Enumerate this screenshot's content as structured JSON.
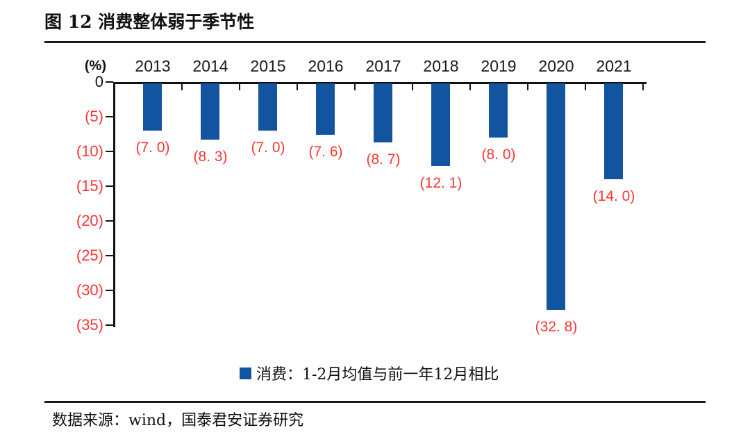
{
  "figure": {
    "title": "图 12 消费整体弱于季节性",
    "source": "数据来源：wind，国泰君安证券研究"
  },
  "chart_data": {
    "type": "bar",
    "title": "图 12 消费整体弱于季节性",
    "categories": [
      "2013",
      "2014",
      "2015",
      "2016",
      "2017",
      "2018",
      "2019",
      "2020",
      "2021"
    ],
    "values": [
      -7.0,
      -8.3,
      -7.0,
      -7.6,
      -8.7,
      -12.1,
      -8.0,
      -32.8,
      -14.0
    ],
    "value_labels": [
      "(7. 0)",
      "(8. 3)",
      "(7. 0)",
      "(7. 6)",
      "(8. 7)",
      "(12. 1)",
      "(8. 0)",
      "(32. 8)",
      "(14. 0)"
    ],
    "unit_label": "(%)",
    "y_tick_labels": [
      "0",
      "(5)",
      "(10)",
      "(15)",
      "(20)",
      "(25)",
      "(30)",
      "(35)"
    ],
    "y_tick_values": [
      0,
      -5,
      -10,
      -15,
      -20,
      -25,
      -30,
      -35
    ],
    "ylim": [
      -35,
      0
    ],
    "grid": false,
    "legend_position": "bottom-center",
    "legend": "消费：1-2月均值与前一年12月相比",
    "colors": {
      "bar": "#1254a0",
      "value_label": "#fa3434",
      "negative_tick_label": "#fa3434",
      "axis": "#111111"
    }
  }
}
